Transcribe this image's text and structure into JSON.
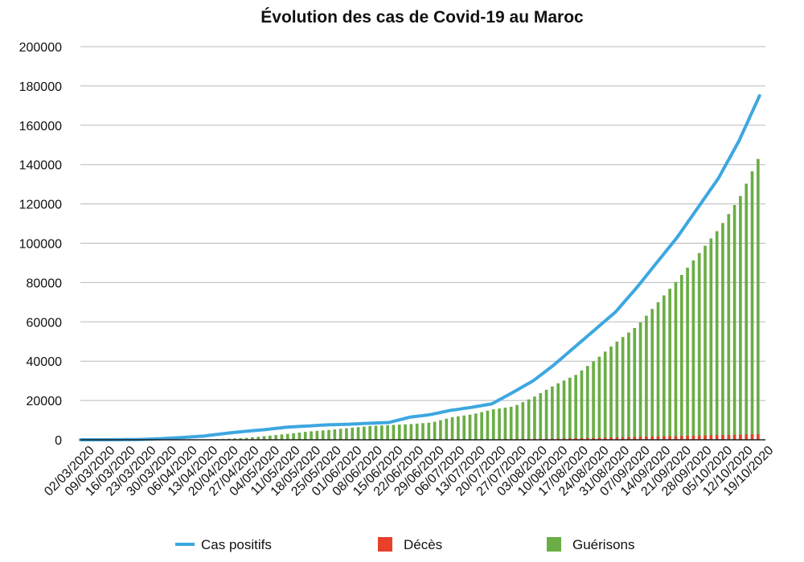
{
  "chart_data": {
    "type": "line",
    "title": "Évolution des cas de Covid-19 au Maroc",
    "xlabel": "",
    "ylabel": "",
    "ylim": [
      0,
      200000
    ],
    "yticks": [
      0,
      20000,
      40000,
      60000,
      80000,
      100000,
      120000,
      140000,
      160000,
      180000,
      200000
    ],
    "grid": true,
    "legend_position": "bottom",
    "x_tick_labels": [
      "02/03/2020",
      "09/03/2020",
      "16/03/2020",
      "23/03/2020",
      "30/03/2020",
      "06/04/2020",
      "13/04/2020",
      "20/04/2020",
      "27/04/2020",
      "04/05/2020",
      "11/05/2020",
      "18/05/2020",
      "25/05/2020",
      "01/06/2020",
      "08/06/2020",
      "15/06/2020",
      "22/06/2020",
      "29/06/2020",
      "06/07/2020",
      "13/07/2020",
      "20/07/2020",
      "27/07/2020",
      "03/08/2020",
      "10/08/2020",
      "17/08/2020",
      "24/08/2020",
      "31/08/2020",
      "07/09/2020",
      "14/09/2020",
      "21/09/2020",
      "28/09/2020",
      "05/10/2020",
      "12/10/2020",
      "19/10/2020"
    ],
    "x": [
      "2020-03-02",
      "2020-03-09",
      "2020-03-16",
      "2020-03-23",
      "2020-03-30",
      "2020-04-06",
      "2020-04-13",
      "2020-04-20",
      "2020-04-27",
      "2020-05-04",
      "2020-05-11",
      "2020-05-18",
      "2020-05-25",
      "2020-06-01",
      "2020-06-08",
      "2020-06-15",
      "2020-06-22",
      "2020-06-29",
      "2020-07-06",
      "2020-07-13",
      "2020-07-20",
      "2020-07-27",
      "2020-08-03",
      "2020-08-10",
      "2020-08-17",
      "2020-08-24",
      "2020-08-31",
      "2020-09-07",
      "2020-09-14",
      "2020-09-21",
      "2020-09-28",
      "2020-10-05",
      "2020-10-12",
      "2020-10-19"
    ],
    "series": [
      {
        "name": "Cas positifs",
        "kind": "line",
        "color": "#3da7e0",
        "values": [
          1,
          2,
          44,
          170,
          600,
          1200,
          1900,
          3200,
          4300,
          5200,
          6400,
          7000,
          7600,
          7900,
          8400,
          8800,
          11500,
          12800,
          15000,
          16500,
          18300,
          24000,
          30000,
          38000,
          47000,
          56000,
          65000,
          77000,
          90000,
          103000,
          118000,
          133000,
          152000,
          175000
        ]
      },
      {
        "name": "Décès",
        "kind": "bar",
        "color": "#e8402a",
        "values": [
          0,
          0,
          2,
          10,
          44,
          90,
          140,
          160,
          170,
          180,
          190,
          192,
          196,
          205,
          208,
          212,
          215,
          225,
          240,
          260,
          280,
          330,
          440,
          600,
          800,
          1000,
          1250,
          1550,
          1750,
          1950,
          2150,
          2400,
          2620,
          2900
        ]
      },
      {
        "name": "Guérisons",
        "kind": "bar",
        "color": "#6aad45",
        "values": [
          0,
          0,
          1,
          5,
          40,
          90,
          200,
          500,
          1000,
          2000,
          3000,
          4200,
          5000,
          6000,
          7000,
          7500,
          8000,
          8800,
          11500,
          13000,
          15500,
          17000,
          22000,
          28000,
          33000,
          41000,
          50000,
          58000,
          70000,
          82000,
          95000,
          108000,
          124000,
          146000
        ]
      }
    ]
  }
}
